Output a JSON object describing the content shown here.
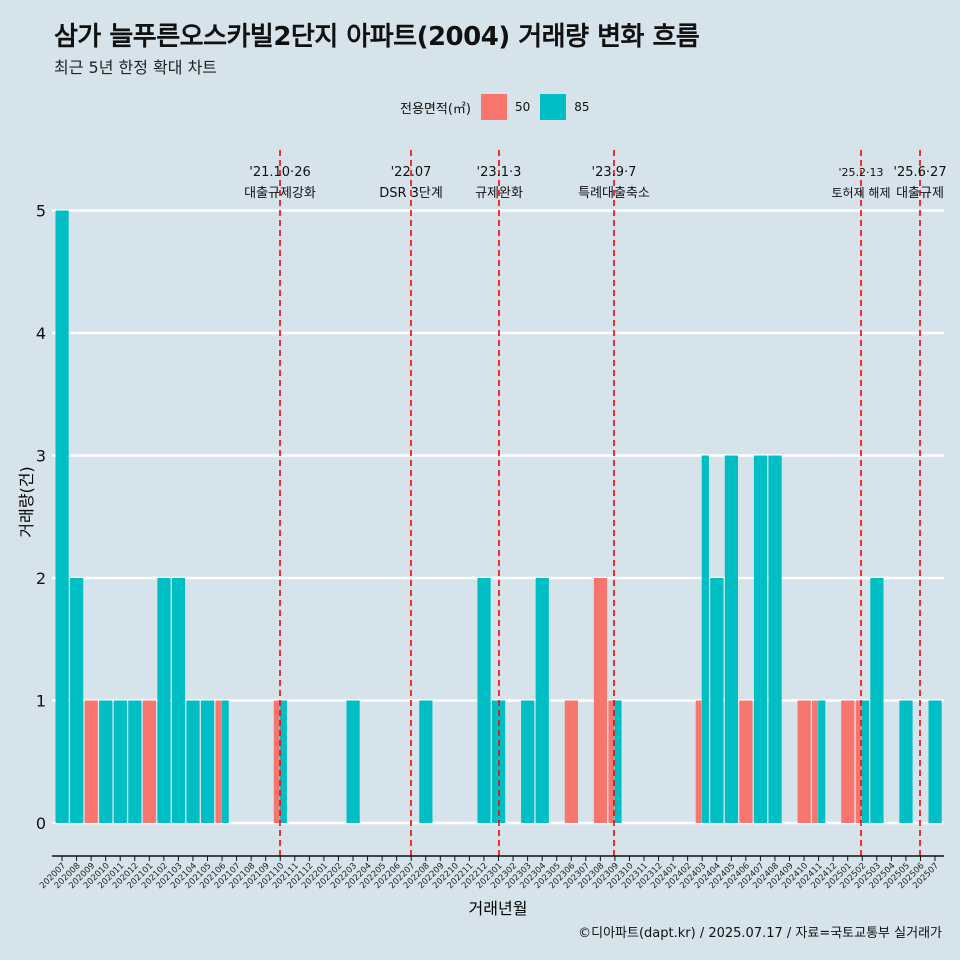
{
  "title": "삼가 늘푸른오스카빌2단지 아파트(2004) 거래량 변화 흐름",
  "subtitle": "최근 5년 한정 확대 차트",
  "caption": "©디아파트(dapt.kr) / 2025.07.17 / 자료=국토교통부 실거래가",
  "legend": {
    "title": "전용면적(㎡)",
    "items": [
      {
        "label": "50",
        "color": "#f8766d"
      },
      {
        "label": "85",
        "color": "#00bfc4"
      }
    ]
  },
  "chart_data": {
    "type": "bar",
    "xlabel": "거래년월",
    "ylabel": "거래량(건)",
    "ylim": [
      0,
      5
    ],
    "yticks": [
      0,
      1,
      2,
      3,
      4,
      5
    ],
    "categories": [
      "202007",
      "202008",
      "202009",
      "202010",
      "202011",
      "202012",
      "202101",
      "202102",
      "202103",
      "202104",
      "202105",
      "202106",
      "202107",
      "202108",
      "202109",
      "202110",
      "202111",
      "202112",
      "202201",
      "202202",
      "202203",
      "202204",
      "202205",
      "202206",
      "202207",
      "202208",
      "202209",
      "202210",
      "202211",
      "202212",
      "202301",
      "202302",
      "202303",
      "202304",
      "202305",
      "202306",
      "202307",
      "202308",
      "202309",
      "202310",
      "202311",
      "202312",
      "202401",
      "202402",
      "202403",
      "202404",
      "202405",
      "202406",
      "202407",
      "202408",
      "202409",
      "202410",
      "202411",
      "202412",
      "202501",
      "202502",
      "202503",
      "202504",
      "202505",
      "202506",
      "202507"
    ],
    "series": [
      {
        "name": "50",
        "color": "#f8766d",
        "values": [
          0,
          0,
          1,
          0,
          0,
          0,
          1,
          0,
          0,
          0,
          0,
          1,
          0,
          0,
          0,
          1,
          0,
          0,
          0,
          0,
          0,
          0,
          0,
          0,
          0,
          0,
          0,
          0,
          0,
          0,
          0,
          0,
          0,
          0,
          0,
          1,
          0,
          2,
          1,
          0,
          0,
          0,
          0,
          0,
          1,
          0,
          0,
          1,
          0,
          0,
          0,
          1,
          1,
          0,
          1,
          1,
          0,
          0,
          0,
          0,
          0
        ]
      },
      {
        "name": "85",
        "color": "#00bfc4",
        "values": [
          5,
          2,
          0,
          1,
          1,
          1,
          0,
          2,
          2,
          1,
          1,
          1,
          0,
          0,
          0,
          1,
          0,
          0,
          0,
          0,
          1,
          0,
          0,
          0,
          0,
          1,
          0,
          0,
          0,
          2,
          1,
          0,
          1,
          2,
          0,
          0,
          0,
          0,
          1,
          0,
          0,
          0,
          0,
          0,
          3,
          2,
          3,
          0,
          3,
          3,
          0,
          0,
          1,
          0,
          0,
          1,
          2,
          0,
          1,
          0,
          1
        ]
      }
    ],
    "events": [
      {
        "date": "'21.10·26",
        "label": "대출규제강화",
        "x": "202110"
      },
      {
        "date": "'22.07",
        "label": "DSR 3단계",
        "x": "202207"
      },
      {
        "date": "'23.1·3",
        "label": "규제완화",
        "x": "202301"
      },
      {
        "date": "'23.9·7",
        "label": "특례대출축소",
        "x": "202309"
      },
      {
        "date": "'25.2·13",
        "label": "토허제 해제",
        "x": "202502"
      },
      {
        "date": "'25.6·27",
        "label": "대출규제",
        "x": "202506"
      }
    ]
  }
}
